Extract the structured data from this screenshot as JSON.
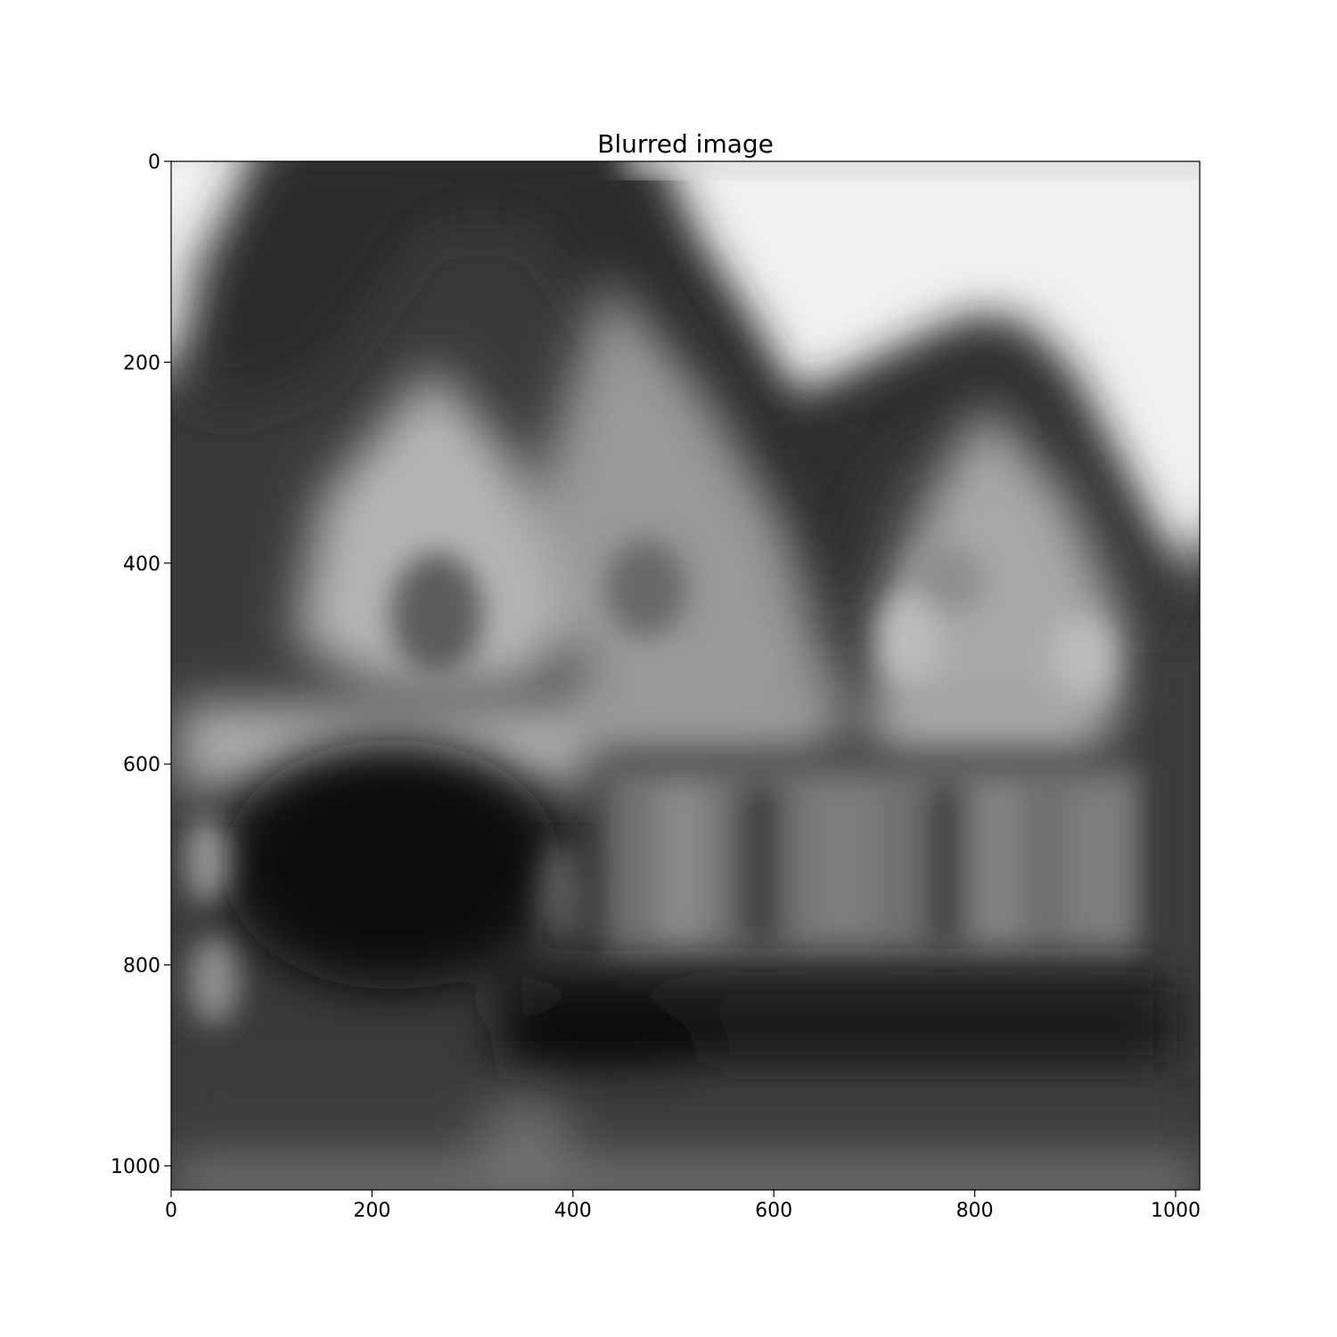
{
  "figure": {
    "title": "Blurred image"
  },
  "image": {
    "description_kind": "grayscale blurred photograph",
    "colormap": "gray",
    "subject_palette": {
      "sky": "#f2f2f2",
      "roof_dark": "#2a2a2a",
      "gable_light": "#b4b4b4",
      "wall_mid": "#8c8c8c",
      "shadow": "#111111"
    }
  },
  "axes": {
    "x": {
      "range": [
        0,
        1024
      ],
      "ticks": [
        0,
        200,
        400,
        600,
        800,
        1000
      ]
    },
    "y": {
      "range": [
        1024,
        0
      ],
      "inverted": true,
      "ticks": [
        0,
        200,
        400,
        600,
        800,
        1000
      ]
    },
    "grid": false
  }
}
